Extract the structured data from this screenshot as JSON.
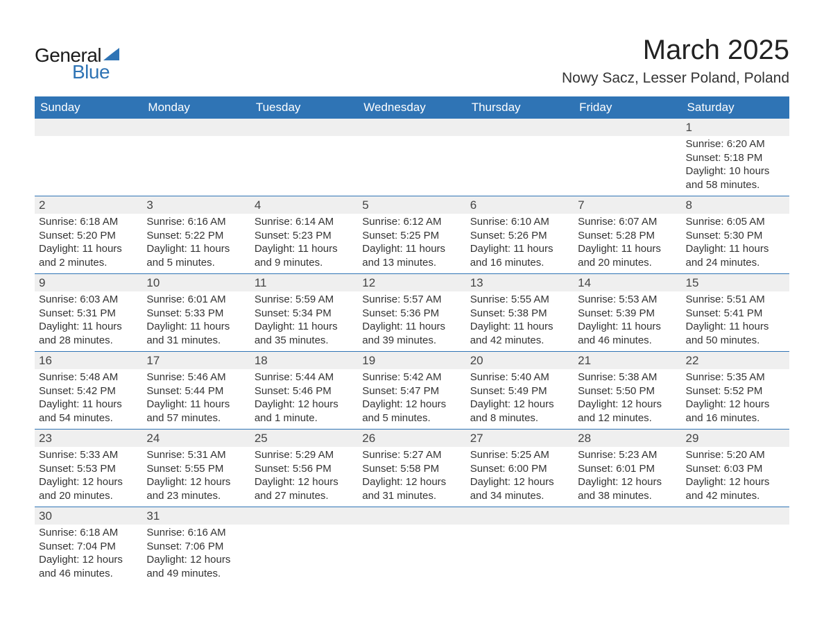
{
  "brand": {
    "word1": "General",
    "word2": "Blue",
    "triangle_color": "#2f74b5",
    "word1_color": "#1a1a1a",
    "word2_color": "#2f74b5"
  },
  "header": {
    "title": "March 2025",
    "subtitle": "Nowy Sacz, Lesser Poland, Poland"
  },
  "colors": {
    "header_bg": "#2f74b5",
    "header_text": "#ffffff",
    "row_divider": "#2f74b5",
    "daynum_bg": "#efefef",
    "body_text": "#333333",
    "page_bg": "#ffffff"
  },
  "typography": {
    "title_fontsize": 40,
    "subtitle_fontsize": 21,
    "weekday_fontsize": 17,
    "daynum_fontsize": 17,
    "cell_fontsize": 15,
    "font_family": "Arial, Helvetica, sans-serif"
  },
  "calendar": {
    "type": "table",
    "columns": [
      "Sunday",
      "Monday",
      "Tuesday",
      "Wednesday",
      "Thursday",
      "Friday",
      "Saturday"
    ],
    "weeks": [
      [
        null,
        null,
        null,
        null,
        null,
        null,
        {
          "day": "1",
          "sunrise": "Sunrise: 6:20 AM",
          "sunset": "Sunset: 5:18 PM",
          "daylight1": "Daylight: 10 hours",
          "daylight2": "and 58 minutes."
        }
      ],
      [
        {
          "day": "2",
          "sunrise": "Sunrise: 6:18 AM",
          "sunset": "Sunset: 5:20 PM",
          "daylight1": "Daylight: 11 hours",
          "daylight2": "and 2 minutes."
        },
        {
          "day": "3",
          "sunrise": "Sunrise: 6:16 AM",
          "sunset": "Sunset: 5:22 PM",
          "daylight1": "Daylight: 11 hours",
          "daylight2": "and 5 minutes."
        },
        {
          "day": "4",
          "sunrise": "Sunrise: 6:14 AM",
          "sunset": "Sunset: 5:23 PM",
          "daylight1": "Daylight: 11 hours",
          "daylight2": "and 9 minutes."
        },
        {
          "day": "5",
          "sunrise": "Sunrise: 6:12 AM",
          "sunset": "Sunset: 5:25 PM",
          "daylight1": "Daylight: 11 hours",
          "daylight2": "and 13 minutes."
        },
        {
          "day": "6",
          "sunrise": "Sunrise: 6:10 AM",
          "sunset": "Sunset: 5:26 PM",
          "daylight1": "Daylight: 11 hours",
          "daylight2": "and 16 minutes."
        },
        {
          "day": "7",
          "sunrise": "Sunrise: 6:07 AM",
          "sunset": "Sunset: 5:28 PM",
          "daylight1": "Daylight: 11 hours",
          "daylight2": "and 20 minutes."
        },
        {
          "day": "8",
          "sunrise": "Sunrise: 6:05 AM",
          "sunset": "Sunset: 5:30 PM",
          "daylight1": "Daylight: 11 hours",
          "daylight2": "and 24 minutes."
        }
      ],
      [
        {
          "day": "9",
          "sunrise": "Sunrise: 6:03 AM",
          "sunset": "Sunset: 5:31 PM",
          "daylight1": "Daylight: 11 hours",
          "daylight2": "and 28 minutes."
        },
        {
          "day": "10",
          "sunrise": "Sunrise: 6:01 AM",
          "sunset": "Sunset: 5:33 PM",
          "daylight1": "Daylight: 11 hours",
          "daylight2": "and 31 minutes."
        },
        {
          "day": "11",
          "sunrise": "Sunrise: 5:59 AM",
          "sunset": "Sunset: 5:34 PM",
          "daylight1": "Daylight: 11 hours",
          "daylight2": "and 35 minutes."
        },
        {
          "day": "12",
          "sunrise": "Sunrise: 5:57 AM",
          "sunset": "Sunset: 5:36 PM",
          "daylight1": "Daylight: 11 hours",
          "daylight2": "and 39 minutes."
        },
        {
          "day": "13",
          "sunrise": "Sunrise: 5:55 AM",
          "sunset": "Sunset: 5:38 PM",
          "daylight1": "Daylight: 11 hours",
          "daylight2": "and 42 minutes."
        },
        {
          "day": "14",
          "sunrise": "Sunrise: 5:53 AM",
          "sunset": "Sunset: 5:39 PM",
          "daylight1": "Daylight: 11 hours",
          "daylight2": "and 46 minutes."
        },
        {
          "day": "15",
          "sunrise": "Sunrise: 5:51 AM",
          "sunset": "Sunset: 5:41 PM",
          "daylight1": "Daylight: 11 hours",
          "daylight2": "and 50 minutes."
        }
      ],
      [
        {
          "day": "16",
          "sunrise": "Sunrise: 5:48 AM",
          "sunset": "Sunset: 5:42 PM",
          "daylight1": "Daylight: 11 hours",
          "daylight2": "and 54 minutes."
        },
        {
          "day": "17",
          "sunrise": "Sunrise: 5:46 AM",
          "sunset": "Sunset: 5:44 PM",
          "daylight1": "Daylight: 11 hours",
          "daylight2": "and 57 minutes."
        },
        {
          "day": "18",
          "sunrise": "Sunrise: 5:44 AM",
          "sunset": "Sunset: 5:46 PM",
          "daylight1": "Daylight: 12 hours",
          "daylight2": "and 1 minute."
        },
        {
          "day": "19",
          "sunrise": "Sunrise: 5:42 AM",
          "sunset": "Sunset: 5:47 PM",
          "daylight1": "Daylight: 12 hours",
          "daylight2": "and 5 minutes."
        },
        {
          "day": "20",
          "sunrise": "Sunrise: 5:40 AM",
          "sunset": "Sunset: 5:49 PM",
          "daylight1": "Daylight: 12 hours",
          "daylight2": "and 8 minutes."
        },
        {
          "day": "21",
          "sunrise": "Sunrise: 5:38 AM",
          "sunset": "Sunset: 5:50 PM",
          "daylight1": "Daylight: 12 hours",
          "daylight2": "and 12 minutes."
        },
        {
          "day": "22",
          "sunrise": "Sunrise: 5:35 AM",
          "sunset": "Sunset: 5:52 PM",
          "daylight1": "Daylight: 12 hours",
          "daylight2": "and 16 minutes."
        }
      ],
      [
        {
          "day": "23",
          "sunrise": "Sunrise: 5:33 AM",
          "sunset": "Sunset: 5:53 PM",
          "daylight1": "Daylight: 12 hours",
          "daylight2": "and 20 minutes."
        },
        {
          "day": "24",
          "sunrise": "Sunrise: 5:31 AM",
          "sunset": "Sunset: 5:55 PM",
          "daylight1": "Daylight: 12 hours",
          "daylight2": "and 23 minutes."
        },
        {
          "day": "25",
          "sunrise": "Sunrise: 5:29 AM",
          "sunset": "Sunset: 5:56 PM",
          "daylight1": "Daylight: 12 hours",
          "daylight2": "and 27 minutes."
        },
        {
          "day": "26",
          "sunrise": "Sunrise: 5:27 AM",
          "sunset": "Sunset: 5:58 PM",
          "daylight1": "Daylight: 12 hours",
          "daylight2": "and 31 minutes."
        },
        {
          "day": "27",
          "sunrise": "Sunrise: 5:25 AM",
          "sunset": "Sunset: 6:00 PM",
          "daylight1": "Daylight: 12 hours",
          "daylight2": "and 34 minutes."
        },
        {
          "day": "28",
          "sunrise": "Sunrise: 5:23 AM",
          "sunset": "Sunset: 6:01 PM",
          "daylight1": "Daylight: 12 hours",
          "daylight2": "and 38 minutes."
        },
        {
          "day": "29",
          "sunrise": "Sunrise: 5:20 AM",
          "sunset": "Sunset: 6:03 PM",
          "daylight1": "Daylight: 12 hours",
          "daylight2": "and 42 minutes."
        }
      ],
      [
        {
          "day": "30",
          "sunrise": "Sunrise: 6:18 AM",
          "sunset": "Sunset: 7:04 PM",
          "daylight1": "Daylight: 12 hours",
          "daylight2": "and 46 minutes."
        },
        {
          "day": "31",
          "sunrise": "Sunrise: 6:16 AM",
          "sunset": "Sunset: 7:06 PM",
          "daylight1": "Daylight: 12 hours",
          "daylight2": "and 49 minutes."
        },
        null,
        null,
        null,
        null,
        null
      ]
    ]
  }
}
